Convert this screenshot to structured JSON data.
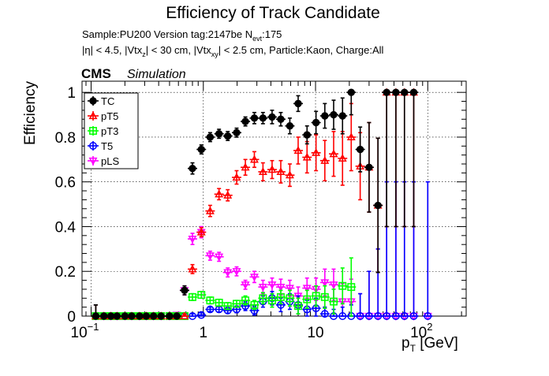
{
  "chart_data": {
    "type": "scatter",
    "title": "Efficiency of Track Candidate",
    "subtitle": {
      "line1_a": "Sample:PU200   Version tag:2147be  N",
      "line1_sub": "evt",
      "line1_b": ":175",
      "line2_a": "|η| < 4.5, |Vtx",
      "line2_sub1": "z",
      "line2_b": "| < 30 cm, |Vtx",
      "line2_sub2": "xy",
      "line2_c": "| < 2.5 cm, Particle:Kaon, Charge:All"
    },
    "cms_label": "CMS",
    "sim_label": "Simulation",
    "ylabel": "Efficiency",
    "xlabel_main": "p",
    "xlabel_sub": "T",
    "xlabel_unit": " [GeV]",
    "xscale": "log",
    "xlim": [
      0.083,
      220
    ],
    "ylim": [
      0,
      1.05
    ],
    "grid": true,
    "legend_position": "top-left",
    "x_ticks": [
      {
        "value": 0.1,
        "base": "10",
        "exp": "−1"
      },
      {
        "value": 1,
        "base": "1",
        "exp": ""
      },
      {
        "value": 10,
        "base": "10",
        "exp": ""
      },
      {
        "value": 100,
        "base": "10",
        "exp": "2"
      }
    ],
    "y_ticks": [
      {
        "value": 0,
        "label": "0"
      },
      {
        "value": 0.2,
        "label": "0.2"
      },
      {
        "value": 0.4,
        "label": "0.4"
      },
      {
        "value": 0.6,
        "label": "0.6"
      },
      {
        "value": 0.8,
        "label": "0.8"
      },
      {
        "value": 1,
        "label": "1"
      }
    ],
    "series": [
      {
        "name": "TC",
        "color": "#000000",
        "marker": "filled-circle",
        "points": [
          [
            0.11,
            0,
            0.05
          ],
          [
            0.13,
            0,
            0
          ],
          [
            0.15,
            0,
            0
          ],
          [
            0.17,
            0,
            0
          ],
          [
            0.2,
            0,
            0
          ],
          [
            0.23,
            0,
            0
          ],
          [
            0.27,
            0,
            0
          ],
          [
            0.31,
            0,
            0
          ],
          [
            0.36,
            0,
            0
          ],
          [
            0.42,
            0,
            0
          ],
          [
            0.5,
            0,
            0
          ],
          [
            0.58,
            0,
            0.01
          ],
          [
            0.68,
            0.115,
            0.02
          ],
          [
            0.8,
            0.66,
            0.025
          ],
          [
            0.96,
            0.745,
            0.02
          ],
          [
            1.15,
            0.8,
            0.02
          ],
          [
            1.38,
            0.815,
            0.02
          ],
          [
            1.65,
            0.805,
            0.02
          ],
          [
            1.98,
            0.82,
            0.02
          ],
          [
            2.37,
            0.87,
            0.02
          ],
          [
            2.85,
            0.885,
            0.025
          ],
          [
            3.4,
            0.885,
            0.025
          ],
          [
            4.1,
            0.89,
            0.03
          ],
          [
            4.9,
            0.88,
            0.03
          ],
          [
            5.9,
            0.85,
            0.035
          ],
          [
            7.0,
            0.95,
            0.035
          ],
          [
            8.4,
            0.81,
            0.04
          ],
          [
            10.1,
            0.865,
            0.05
          ],
          [
            12.1,
            0.895,
            0.055
          ],
          [
            14.5,
            0.9,
            0.065
          ],
          [
            17.4,
            0.895,
            0.08
          ],
          [
            20.8,
            1.0,
            0.1
          ],
          [
            25,
            0.745,
            0.1
          ],
          [
            30,
            0.665,
            0.2
          ],
          [
            36,
            0.495,
            0.3
          ],
          [
            43,
            1.0,
            0.6
          ],
          [
            52,
            1.0,
            0.6
          ],
          [
            62,
            1.0,
            0.6
          ],
          [
            75,
            1.0,
            0.6
          ]
        ]
      },
      {
        "name": "pT5",
        "color": "#ff0000",
        "marker": "open-triangle",
        "points": [
          [
            0.11,
            0,
            0.05
          ],
          [
            0.13,
            0,
            0
          ],
          [
            0.15,
            0,
            0
          ],
          [
            0.17,
            0,
            0
          ],
          [
            0.2,
            0,
            0
          ],
          [
            0.23,
            0,
            0
          ],
          [
            0.27,
            0,
            0
          ],
          [
            0.31,
            0,
            0
          ],
          [
            0.36,
            0,
            0
          ],
          [
            0.42,
            0,
            0
          ],
          [
            0.5,
            0,
            0
          ],
          [
            0.58,
            0,
            0.01
          ],
          [
            0.68,
            0,
            0.01
          ],
          [
            0.8,
            0.21,
            0.02
          ],
          [
            0.96,
            0.375,
            0.02
          ],
          [
            1.15,
            0.47,
            0.025
          ],
          [
            1.38,
            0.545,
            0.025
          ],
          [
            1.65,
            0.54,
            0.025
          ],
          [
            1.98,
            0.62,
            0.03
          ],
          [
            2.37,
            0.665,
            0.035
          ],
          [
            2.85,
            0.7,
            0.035
          ],
          [
            3.4,
            0.645,
            0.04
          ],
          [
            4.1,
            0.655,
            0.04
          ],
          [
            4.9,
            0.645,
            0.05
          ],
          [
            5.9,
            0.63,
            0.05
          ],
          [
            7.0,
            0.74,
            0.06
          ],
          [
            8.4,
            0.71,
            0.07
          ],
          [
            10.1,
            0.73,
            0.08
          ],
          [
            12.1,
            0.695,
            0.09
          ],
          [
            14.5,
            0.725,
            0.1
          ],
          [
            17.4,
            0.705,
            0.12
          ],
          [
            20.8,
            0.8,
            0.15
          ],
          [
            25,
            0.67,
            0.15
          ],
          [
            30,
            0.665,
            0.2
          ],
          [
            36,
            0.495,
            0.3
          ],
          [
            43,
            1.0,
            0.6
          ],
          [
            52,
            1.0,
            0.6
          ],
          [
            62,
            1.0,
            0.6
          ],
          [
            75,
            1.0,
            0.6
          ]
        ]
      },
      {
        "name": "pT3",
        "color": "#00ff00",
        "marker": "open-square",
        "points": [
          [
            0.11,
            0,
            0.05
          ],
          [
            0.13,
            0,
            0
          ],
          [
            0.15,
            0,
            0
          ],
          [
            0.17,
            0,
            0
          ],
          [
            0.2,
            0,
            0
          ],
          [
            0.23,
            0,
            0
          ],
          [
            0.27,
            0,
            0
          ],
          [
            0.31,
            0,
            0
          ],
          [
            0.36,
            0,
            0
          ],
          [
            0.42,
            0,
            0
          ],
          [
            0.5,
            0,
            0
          ],
          [
            0.58,
            0,
            0.01
          ],
          [
            0.68,
            0,
            0.01
          ],
          [
            0.8,
            0.085,
            0.015
          ],
          [
            0.96,
            0.095,
            0.015
          ],
          [
            1.15,
            0.07,
            0.015
          ],
          [
            1.38,
            0.06,
            0.015
          ],
          [
            1.65,
            0.045,
            0.015
          ],
          [
            1.98,
            0.055,
            0.015
          ],
          [
            2.37,
            0.07,
            0.02
          ],
          [
            2.85,
            0.05,
            0.02
          ],
          [
            3.4,
            0.08,
            0.025
          ],
          [
            4.1,
            0.07,
            0.03
          ],
          [
            4.9,
            0.085,
            0.03
          ],
          [
            5.9,
            0.08,
            0.035
          ],
          [
            7.0,
            0.045,
            0.035
          ],
          [
            8.4,
            0.075,
            0.04
          ],
          [
            10.1,
            0.09,
            0.045
          ],
          [
            12.1,
            0.085,
            0.05
          ],
          [
            14.5,
            0.065,
            0.055
          ],
          [
            17.4,
            0.135,
            0.08
          ],
          [
            20.8,
            0.13,
            0.13
          ]
        ]
      },
      {
        "name": "T5",
        "color": "#0000ff",
        "marker": "open-circle",
        "points": [
          [
            0.11,
            0,
            0.05
          ],
          [
            0.13,
            0,
            0
          ],
          [
            0.15,
            0,
            0
          ],
          [
            0.17,
            0,
            0
          ],
          [
            0.2,
            0,
            0
          ],
          [
            0.23,
            0,
            0
          ],
          [
            0.27,
            0,
            0
          ],
          [
            0.31,
            0,
            0
          ],
          [
            0.36,
            0,
            0
          ],
          [
            0.42,
            0,
            0
          ],
          [
            0.5,
            0,
            0
          ],
          [
            0.58,
            0,
            0.01
          ],
          [
            0.68,
            0,
            0.01
          ],
          [
            0.8,
            0,
            0.01
          ],
          [
            0.96,
            0.005,
            0.01
          ],
          [
            1.15,
            0.03,
            0.01
          ],
          [
            1.38,
            0.03,
            0.012
          ],
          [
            1.65,
            0.025,
            0.012
          ],
          [
            1.98,
            0.03,
            0.015
          ],
          [
            2.37,
            0.045,
            0.02
          ],
          [
            2.85,
            0.025,
            0.02
          ],
          [
            3.4,
            0.065,
            0.025
          ],
          [
            4.1,
            0.08,
            0.03
          ],
          [
            4.9,
            0.05,
            0.03
          ],
          [
            5.9,
            0.065,
            0.035
          ],
          [
            7.0,
            0.05,
            0.04
          ],
          [
            8.4,
            0.03,
            0.04
          ],
          [
            10.1,
            0.035,
            0.045
          ],
          [
            12.1,
            0.01,
            0.03
          ],
          [
            14.5,
            0,
            0.03
          ],
          [
            17.4,
            0,
            0.04
          ],
          [
            20.8,
            0,
            0.05
          ],
          [
            25,
            0,
            0.1
          ],
          [
            30,
            0,
            0.2
          ],
          [
            36,
            0,
            0.3
          ],
          [
            43,
            0,
            0.6
          ],
          [
            52,
            0,
            0.6
          ],
          [
            62,
            0,
            0.6
          ],
          [
            75,
            0,
            0.6
          ],
          [
            100,
            0,
            0.6
          ]
        ]
      },
      {
        "name": "pLS",
        "color": "#ff00ff",
        "marker": "open-triangle-down",
        "points": [
          [
            0.11,
            0,
            0.05
          ],
          [
            0.13,
            0,
            0
          ],
          [
            0.15,
            0,
            0
          ],
          [
            0.17,
            0,
            0
          ],
          [
            0.2,
            0,
            0
          ],
          [
            0.23,
            0,
            0
          ],
          [
            0.27,
            0,
            0
          ],
          [
            0.31,
            0,
            0
          ],
          [
            0.36,
            0,
            0
          ],
          [
            0.42,
            0,
            0
          ],
          [
            0.5,
            0,
            0
          ],
          [
            0.58,
            0.005,
            0.01
          ],
          [
            0.68,
            0.115,
            0.02
          ],
          [
            0.8,
            0.345,
            0.025
          ],
          [
            0.96,
            0.375,
            0.025
          ],
          [
            1.15,
            0.27,
            0.02
          ],
          [
            1.38,
            0.265,
            0.02
          ],
          [
            1.65,
            0.195,
            0.02
          ],
          [
            1.98,
            0.2,
            0.02
          ],
          [
            2.37,
            0.14,
            0.02
          ],
          [
            2.85,
            0.175,
            0.025
          ],
          [
            3.4,
            0.13,
            0.03
          ],
          [
            4.1,
            0.14,
            0.03
          ],
          [
            4.9,
            0.13,
            0.035
          ],
          [
            5.9,
            0.125,
            0.035
          ],
          [
            7.0,
            0.09,
            0.04
          ],
          [
            8.4,
            0.125,
            0.045
          ],
          [
            10.1,
            0.12,
            0.05
          ],
          [
            12.1,
            0.15,
            0.06
          ],
          [
            14.5,
            0.14,
            0.07
          ],
          [
            17.4,
            0.065,
            0.08
          ],
          [
            20.8,
            0.065,
            0.1
          ],
          [
            25,
            0,
            0.1
          ],
          [
            30,
            0,
            0.2
          ],
          [
            36,
            0,
            0.3
          ],
          [
            43,
            0,
            0.6
          ],
          [
            52,
            0,
            0.6
          ],
          [
            62,
            0,
            0.6
          ],
          [
            75,
            0,
            0.6
          ],
          [
            100,
            0,
            0.6
          ]
        ]
      }
    ]
  }
}
